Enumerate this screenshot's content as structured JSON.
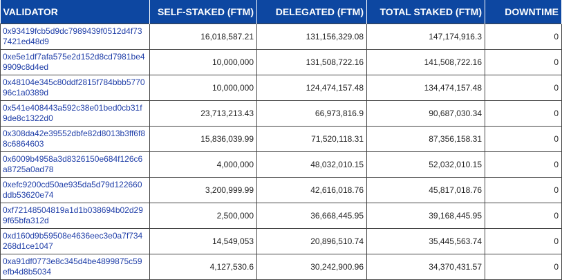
{
  "columns": {
    "validator": "VALIDATOR",
    "self_staked": "SELF-STAKED (FTM)",
    "delegated": "DELEGATED (FTM)",
    "total_staked": "TOTAL STAKED (FTM)",
    "downtime": "DOWNTIME"
  },
  "rows": [
    {
      "address": "0x93419fcb5d9dc7989439f0512d4f737421ed48d9",
      "self_staked": "16,018,587.21",
      "delegated": "131,156,329.08",
      "total_staked": "147,174,916.3",
      "downtime": "0"
    },
    {
      "address": "0xe5e1df7afa575e2d152d8cd7981be49909c8d4ed",
      "self_staked": "10,000,000",
      "delegated": "131,508,722.16",
      "total_staked": "141,508,722.16",
      "downtime": "0"
    },
    {
      "address": "0x48104e345c80ddf2815f784bbb577096c1a0389d",
      "self_staked": "10,000,000",
      "delegated": "124,474,157.48",
      "total_staked": "134,474,157.48",
      "downtime": "0"
    },
    {
      "address": "0x541e408443a592c38e01bed0cb31f9de8c1322d0",
      "self_staked": "23,713,213.43",
      "delegated": "66,973,816.9",
      "total_staked": "90,687,030.34",
      "downtime": "0"
    },
    {
      "address": "0x308da42e39552dbfe82d8013b3ff6f88c6864603",
      "self_staked": "15,836,039.99",
      "delegated": "71,520,118.31",
      "total_staked": "87,356,158.31",
      "downtime": "0"
    },
    {
      "address": "0x6009b4958a3d8326150e684f126c6a8725a0ad78",
      "self_staked": "4,000,000",
      "delegated": "48,032,010.15",
      "total_staked": "52,032,010.15",
      "downtime": "0"
    },
    {
      "address": "0xefc9200cd50ae935da5d79d122660ddb53620e74",
      "self_staked": "3,200,999.99",
      "delegated": "42,616,018.76",
      "total_staked": "45,817,018.76",
      "downtime": "0"
    },
    {
      "address": "0xf72148504819a1d1b038694b02d299f65bfa312d",
      "self_staked": "2,500,000",
      "delegated": "36,668,445.95",
      "total_staked": "39,168,445.95",
      "downtime": "0"
    },
    {
      "address": "0xd160d9b59508e4636eec3e0a7f734268d1ce1047",
      "self_staked": "14,549,053",
      "delegated": "20,896,510.74",
      "total_staked": "35,445,563.74",
      "downtime": "0"
    },
    {
      "address": "0xa91df0773e8c345d4be4899875c59efb4d8b5034",
      "self_staked": "4,127,530.6",
      "delegated": "30,242,900.96",
      "total_staked": "34,370,431.57",
      "downtime": "0"
    }
  ]
}
